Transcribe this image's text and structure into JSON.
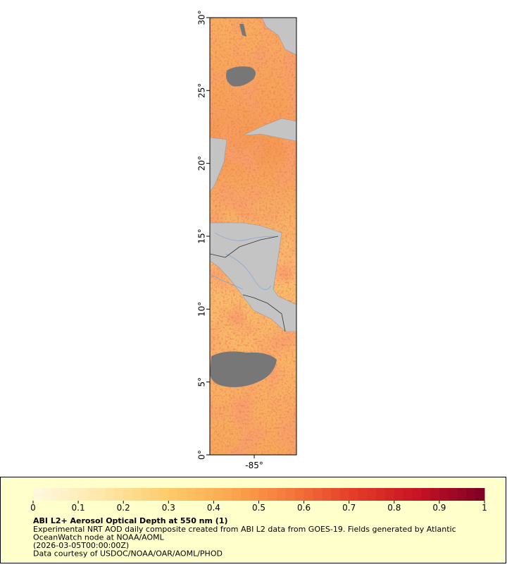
{
  "map": {
    "lat_range": [
      0,
      30
    ],
    "lon_range": [
      -88.05,
      -82.1
    ],
    "lat_ticks": [
      {
        "value": 0,
        "label": "0°"
      },
      {
        "value": 5,
        "label": "5°"
      },
      {
        "value": 10,
        "label": "10°"
      },
      {
        "value": 15,
        "label": "15°"
      },
      {
        "value": 20,
        "label": "20°"
      },
      {
        "value": 25,
        "label": "25°"
      },
      {
        "value": 30,
        "label": "30°"
      }
    ],
    "lon_ticks": [
      {
        "value": -85,
        "label": "-85°"
      }
    ]
  },
  "colorbar": {
    "range": [
      0,
      1
    ],
    "ticks": [
      0,
      0.1,
      0.2,
      0.3,
      0.4,
      0.5,
      0.6,
      0.7,
      0.8,
      0.9,
      1
    ]
  },
  "legend": {
    "title": "ABI L2+ Aerosol Optical Depth at 550 nm (1)",
    "lines": [
      "Experimental NRT AOD daily composite created from ABI L2 data from GOES-19. Fields generated by Atlantic",
      "OceanWatch node at NOAA/AOML",
      "(2026-03-05T00:00:00Z)",
      "Data courtesy of USDOC/NOAA/OAR/AOML/PHOD"
    ]
  }
}
